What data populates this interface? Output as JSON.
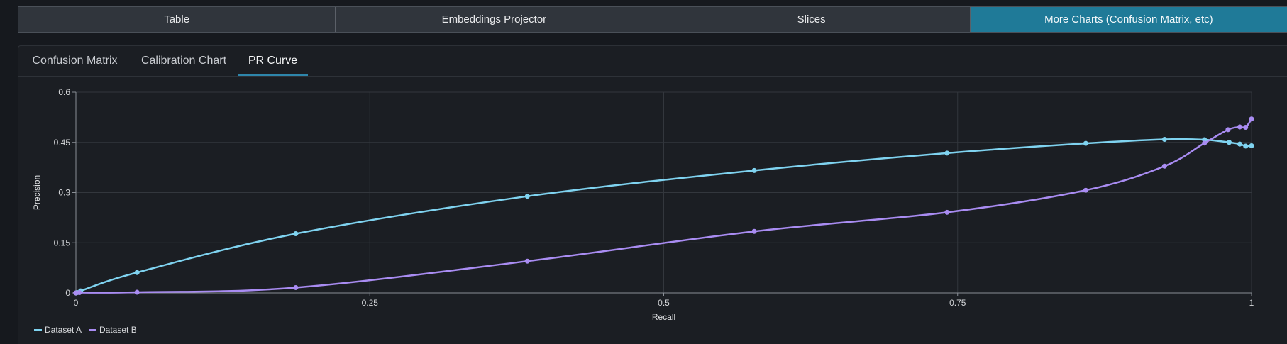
{
  "top_tabs": [
    {
      "label": "Table"
    },
    {
      "label": "Embeddings Projector"
    },
    {
      "label": "Slices"
    },
    {
      "label": "More Charts (Confusion Matrix, etc)"
    }
  ],
  "sub_tabs": [
    {
      "label": "Confusion Matrix"
    },
    {
      "label": "Calibration Chart"
    },
    {
      "label": "PR Curve"
    }
  ],
  "colors": {
    "accent": "#2e86ab",
    "series_a": "#7fd3f0",
    "series_b": "#a98cf2"
  },
  "chart_data": {
    "type": "line",
    "xlabel": "Recall",
    "ylabel": "Precision",
    "xlim": [
      0,
      1
    ],
    "ylim": [
      0,
      0.6
    ],
    "x_ticks": [
      "0",
      "0.25",
      "0.5",
      "0.75",
      "1"
    ],
    "y_ticks": [
      "0",
      "0.15",
      "0.3",
      "0.45",
      "0.6"
    ],
    "grid": true,
    "legend": "bottom-left",
    "series": [
      {
        "name": "Dataset A",
        "points": [
          [
            0,
            0
          ],
          [
            0.001,
            0.001
          ],
          [
            0.004,
            0.006
          ],
          [
            0.052,
            0.061
          ],
          [
            0.187,
            0.177
          ],
          [
            0.384,
            0.289
          ],
          [
            0.577,
            0.366
          ],
          [
            0.741,
            0.418
          ],
          [
            0.859,
            0.447
          ],
          [
            0.926,
            0.459
          ],
          [
            0.96,
            0.458
          ],
          [
            0.981,
            0.45
          ],
          [
            0.99,
            0.445
          ],
          [
            0.995,
            0.439
          ],
          [
            1,
            0.44
          ]
        ]
      },
      {
        "name": "Dataset B",
        "points": [
          [
            0,
            0
          ],
          [
            0.003,
            0.001
          ],
          [
            0.052,
            0.002
          ],
          [
            0.187,
            0.016
          ],
          [
            0.384,
            0.095
          ],
          [
            0.577,
            0.184
          ],
          [
            0.741,
            0.241
          ],
          [
            0.859,
            0.307
          ],
          [
            0.926,
            0.379
          ],
          [
            0.96,
            0.448
          ],
          [
            0.98,
            0.488
          ],
          [
            0.99,
            0.496
          ],
          [
            0.995,
            0.495
          ],
          [
            1,
            0.52
          ]
        ]
      }
    ]
  }
}
